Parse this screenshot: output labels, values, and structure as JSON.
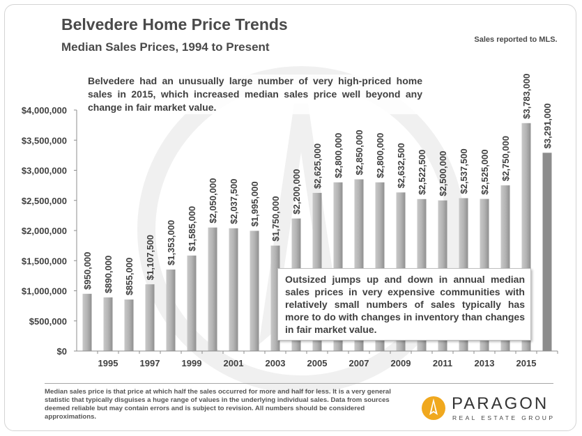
{
  "title": "Belvedere Home Price Trends",
  "subtitle": "Median Sales Prices, 1994 to Present",
  "note_top": "Sales reported to MLS.",
  "annotation_top": "Belvedere had an unusually large number of very high-priced home sales in 2015, which increased median sales price well beyond any change in fair market value.",
  "annotation_box": "Outsized jumps up and down in annual median sales prices in very expensive communities with relatively small numbers of sales typically has more to do with changes in inventory than changes in fair market value.",
  "footnote": "Median sales price is that price at which half the sales occurred for more and half for less. It is a very general statistic that typically disguises a huge range of values in the underlying individual sales. Data from sources deemed reliable but may contain errors and is subject to revision.  All numbers should be considered approximations.",
  "logo": {
    "name": "PARAGON",
    "tagline": "REAL ESTATE GROUP",
    "icon": "paragon-flame-logo-icon"
  },
  "colors": {
    "bar": "#a6a6a6",
    "bar_highlight": "#8c8c8c",
    "text": "#404040",
    "logo_accent": "#f0a81e"
  },
  "chart_data": {
    "type": "bar",
    "title": "Belvedere Home Price Trends",
    "subtitle": "Median Sales Prices, 1994 to Present",
    "x": [
      1994,
      1995,
      1996,
      1997,
      1998,
      1999,
      2000,
      2001,
      2002,
      2003,
      2004,
      2005,
      2006,
      2007,
      2008,
      2009,
      2010,
      2011,
      2012,
      2013,
      2014,
      2015,
      2016
    ],
    "values": [
      950000,
      890000,
      855000,
      1107500,
      1353000,
      1585000,
      2050000,
      2037500,
      1995000,
      1750000,
      2200000,
      2625000,
      2800000,
      2850000,
      2800000,
      2632500,
      2522500,
      2500000,
      2537500,
      2525000,
      2750000,
      3783000,
      3291000
    ],
    "data_labels": [
      "$950,000",
      "$890,000",
      "$855,000",
      "$1,107,500",
      "$1,353,000",
      "$1,585,000",
      "$2,050,000",
      "$2,037,500",
      "$1,995,000",
      "$1,750,000",
      "$2,200,000",
      "$2,625,000",
      "$2,800,000",
      "$2,850,000",
      "$2,800,000",
      "$2,632,500",
      "$2,522,500",
      "$2,500,000",
      "$2,537,500",
      "$2,525,000",
      "$2,750,000",
      "$3,783,000",
      "$3,291,000"
    ],
    "x_tick_labels": [
      "1995",
      "1997",
      "1999",
      "2001",
      "2003",
      "2005",
      "2007",
      "2009",
      "2011",
      "2013",
      "2015"
    ],
    "y_ticks": [
      0,
      500000,
      1000000,
      1500000,
      2000000,
      2500000,
      3000000,
      3500000,
      4000000
    ],
    "y_tick_labels": [
      "$0",
      "$500,000",
      "$1,000,000",
      "$1,500,000",
      "$2,000,000",
      "$2,500,000",
      "$3,000,000",
      "$3,500,000",
      "$4,000,000"
    ],
    "ylim": [
      0,
      4000000
    ],
    "grid": false,
    "legend": "none"
  }
}
